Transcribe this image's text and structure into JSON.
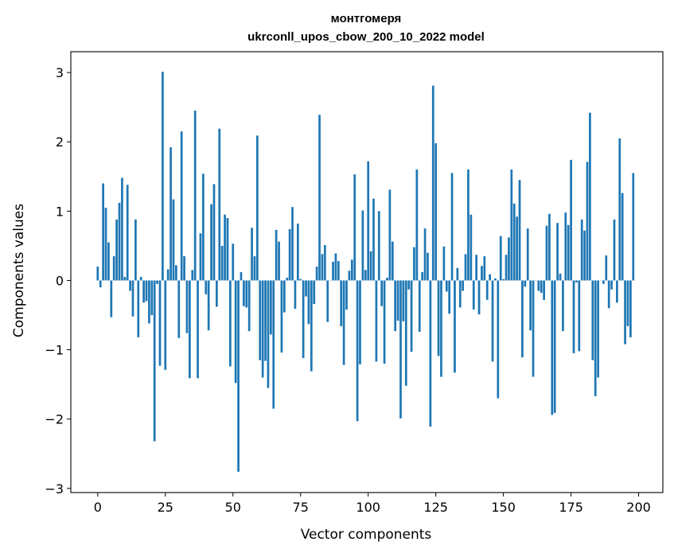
{
  "chart_data": {
    "type": "bar",
    "title": "монтгомеря",
    "subtitle": "ukrconll_upos_cbow_200_10_2022 model",
    "xlabel": "Vector components",
    "ylabel": "Components values",
    "xlim": [
      -9.95,
      208.95
    ],
    "ylim": [
      -3.06,
      3.3
    ],
    "xticks": [
      0,
      25,
      50,
      75,
      100,
      125,
      150,
      175,
      200
    ],
    "yticks": [
      -3,
      -2,
      -1,
      0,
      1,
      2,
      3
    ],
    "xtick_labels": [
      "0",
      "25",
      "50",
      "75",
      "100",
      "125",
      "150",
      "175",
      "200"
    ],
    "ytick_labels": [
      "−3",
      "−2",
      "−1",
      "0",
      "1",
      "2",
      "3"
    ],
    "grid": false,
    "bar_color": "#1f77b4",
    "values": [
      0.2,
      -0.1,
      1.4,
      1.05,
      0.55,
      -0.53,
      0.35,
      0.88,
      1.12,
      1.48,
      0.05,
      1.38,
      -0.15,
      -0.52,
      0.88,
      -0.82,
      0.05,
      -0.32,
      -0.3,
      -0.62,
      -0.5,
      -2.32,
      -0.05,
      -1.23,
      3.01,
      -1.29,
      0.16,
      1.92,
      1.17,
      0.22,
      -0.83,
      2.15,
      0.35,
      -0.76,
      -1.41,
      0.15,
      2.45,
      -1.41,
      0.68,
      1.54,
      -0.2,
      -0.72,
      1.1,
      1.39,
      -0.38,
      2.19,
      0.5,
      0.95,
      0.9,
      -1.24,
      0.53,
      -1.48,
      -2.76,
      0.12,
      -0.37,
      -0.39,
      -0.73,
      0.76,
      0.35,
      2.09,
      -1.15,
      -1.4,
      -1.16,
      -1.55,
      -0.78,
      -1.85,
      0.73,
      0.56,
      -1.04,
      -0.46,
      0.04,
      0.74,
      1.06,
      -0.41,
      0.82,
      0.02,
      -1.12,
      -0.23,
      -0.63,
      -1.31,
      -0.34,
      0.2,
      2.39,
      0.38,
      0.51,
      -0.6,
      0.0,
      0.27,
      0.39,
      0.28,
      -0.66,
      -1.22,
      -0.42,
      0.14,
      0.3,
      1.53,
      -2.03,
      -1.21,
      1.01,
      0.15,
      1.72,
      0.42,
      1.18,
      -1.17,
      1.0,
      -0.37,
      -1.2,
      0.04,
      1.31,
      0.56,
      -0.73,
      -0.58,
      -1.99,
      -0.59,
      -1.52,
      -0.13,
      -1.03,
      0.48,
      1.6,
      -0.74,
      0.12,
      0.75,
      0.4,
      -2.11,
      2.81,
      1.98,
      -1.09,
      -1.39,
      0.49,
      -0.16,
      -0.48,
      1.55,
      -1.33,
      0.18,
      -0.39,
      -0.15,
      0.38,
      1.6,
      0.95,
      -0.42,
      0.37,
      -0.49,
      0.21,
      0.35,
      -0.28,
      0.09,
      -1.17,
      0.03,
      -1.7,
      0.64,
      0.02,
      0.37,
      0.62,
      1.6,
      1.11,
      0.92,
      1.45,
      -1.11,
      -0.09,
      0.75,
      -0.72,
      -1.39,
      0.0,
      -0.15,
      -0.18,
      -0.28,
      0.79,
      0.96,
      -1.94,
      -1.91,
      0.83,
      0.1,
      -0.73,
      0.98,
      0.8,
      1.74,
      -1.05,
      -0.03,
      -1.02,
      0.88,
      0.72,
      1.71,
      2.42,
      -1.15,
      -1.67,
      -1.4,
      0.0,
      -0.05,
      0.36,
      -0.4,
      -0.13,
      0.88,
      -0.32,
      2.05,
      1.26,
      -0.92,
      -0.66,
      -0.82,
      1.55
    ]
  }
}
